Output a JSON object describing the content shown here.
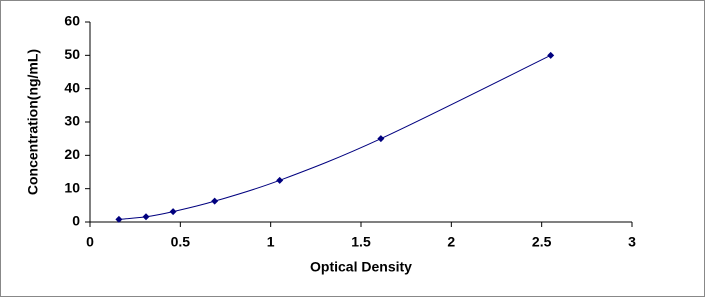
{
  "chart_data": {
    "type": "scatter",
    "x_label": "Optical Density",
    "y_label": "Concentration(ng/mL)",
    "x": [
      0.16,
      0.31,
      0.46,
      0.69,
      1.05,
      1.61,
      2.55
    ],
    "values": [
      0.78,
      1.56,
      3.12,
      6.25,
      12.5,
      25,
      50
    ],
    "color": "#00007f",
    "xlim": [
      0,
      3
    ],
    "xticks": [
      0,
      0.5,
      1,
      1.5,
      2,
      2.5,
      3
    ],
    "ylim": [
      0,
      60
    ],
    "yticks": [
      0,
      10,
      20,
      30,
      40,
      50,
      60
    ],
    "grid": false
  }
}
